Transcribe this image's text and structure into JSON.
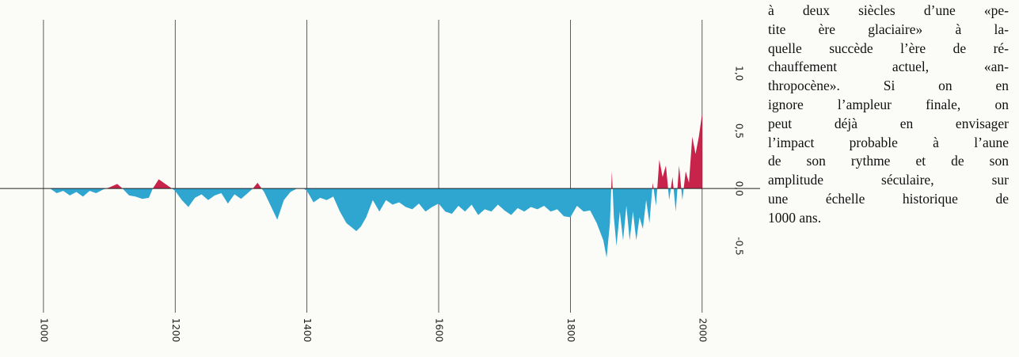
{
  "chart_data": {
    "type": "area",
    "x": [
      1000,
      1010,
      1020,
      1030,
      1040,
      1050,
      1060,
      1070,
      1080,
      1090,
      1100,
      1112,
      1120,
      1130,
      1140,
      1150,
      1160,
      1166,
      1175,
      1185,
      1195,
      1200,
      1210,
      1220,
      1230,
      1240,
      1250,
      1260,
      1270,
      1280,
      1290,
      1300,
      1310,
      1318,
      1325,
      1335,
      1345,
      1355,
      1365,
      1375,
      1385,
      1395,
      1400,
      1410,
      1420,
      1430,
      1440,
      1450,
      1460,
      1475,
      1482,
      1490,
      1500,
      1510,
      1520,
      1530,
      1540,
      1550,
      1560,
      1570,
      1580,
      1590,
      1600,
      1610,
      1620,
      1630,
      1640,
      1650,
      1660,
      1670,
      1680,
      1690,
      1700,
      1710,
      1720,
      1730,
      1740,
      1750,
      1760,
      1770,
      1780,
      1790,
      1800,
      1810,
      1820,
      1830,
      1840,
      1850,
      1855,
      1860,
      1863,
      1866,
      1870,
      1875,
      1880,
      1885,
      1890,
      1895,
      1900,
      1905,
      1910,
      1915,
      1920,
      1925,
      1930,
      1935,
      1940,
      1945,
      1950,
      1955,
      1960,
      1965,
      1970,
      1975,
      1980,
      1985,
      1990,
      1995,
      2000
    ],
    "values": [
      0,
      0,
      -0.04,
      -0.02,
      -0.06,
      -0.03,
      -0.07,
      -0.02,
      -0.04,
      -0.01,
      0.01,
      0.04,
      0,
      -0.06,
      -0.07,
      -0.09,
      -0.08,
      0,
      0.08,
      0.04,
      0,
      -0.02,
      -0.1,
      -0.16,
      -0.08,
      -0.05,
      -0.1,
      -0.06,
      -0.04,
      -0.13,
      -0.05,
      -0.09,
      -0.04,
      0,
      0.05,
      -0.03,
      -0.15,
      -0.27,
      -0.1,
      -0.03,
      0,
      0,
      -0.02,
      -0.12,
      -0.08,
      -0.1,
      -0.07,
      -0.2,
      -0.3,
      -0.37,
      -0.33,
      -0.25,
      -0.1,
      -0.2,
      -0.1,
      -0.14,
      -0.12,
      -0.16,
      -0.18,
      -0.13,
      -0.2,
      -0.16,
      -0.13,
      -0.2,
      -0.22,
      -0.15,
      -0.2,
      -0.14,
      -0.23,
      -0.18,
      -0.2,
      -0.14,
      -0.19,
      -0.23,
      -0.17,
      -0.2,
      -0.16,
      -0.18,
      -0.15,
      -0.2,
      -0.18,
      -0.24,
      -0.25,
      -0.15,
      -0.2,
      -0.19,
      -0.3,
      -0.45,
      -0.6,
      -0.3,
      0.15,
      -0.25,
      -0.5,
      -0.2,
      -0.45,
      -0.15,
      -0.45,
      -0.2,
      -0.45,
      -0.25,
      -0.35,
      -0.1,
      -0.3,
      0.05,
      -0.15,
      0.25,
      0.1,
      0.2,
      -0.1,
      0.1,
      -0.2,
      0.2,
      -0.1,
      0.15,
      0.05,
      0.45,
      0.3,
      0.45,
      0.65
    ],
    "positive_color": "#c8234a",
    "negative_color": "#2ea6d0",
    "xlim": [
      934,
      2088
    ],
    "xticks": [
      1000,
      1200,
      1400,
      1600,
      1800,
      2000
    ],
    "ylim": [
      -1.25,
      1.5
    ],
    "yticks": [
      {
        "value": -0.5,
        "label": "-0,5"
      },
      {
        "value": 0,
        "label": "0,0"
      },
      {
        "value": 0.5,
        "label": "0,5"
      },
      {
        "value": 1,
        "label": "1,0"
      }
    ]
  },
  "text": {
    "lines": [
      "à deux siècles d’une «pe-",
      "tite ère glaciaire» à la-",
      "quelle succède l’ère de ré-",
      "chauffement actuel, «an-",
      "thropocène». Si on en",
      "ignore l’ampleur finale, on",
      "peut déjà en envisager",
      "l’impact probable à l’aune",
      "de son rythme et de son",
      "amplitude séculaire, sur",
      "une échelle historique de",
      "1000 ans."
    ]
  }
}
